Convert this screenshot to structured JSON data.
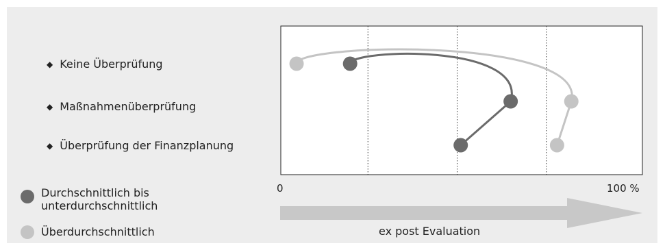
{
  "chart_data": {
    "type": "line",
    "categories": [
      "Keine Überprüfung",
      "Maßnahmenüberprüfung",
      "Überprüfung der Finanzplanung"
    ],
    "xlim": [
      0,
      100
    ],
    "tick_labels": [
      "0",
      "100 %"
    ],
    "xlabel": "ex post Evaluation",
    "reference_lines": [
      25,
      50,
      75
    ],
    "series": [
      {
        "name": "Durchschnittlich bis unterdurchschnittlich",
        "color": "#6b6b6b",
        "values": [
          20,
          65,
          51
        ]
      },
      {
        "name": "Überdurchschnittlich",
        "color": "#c4c4c4",
        "values": [
          5,
          82,
          78
        ]
      }
    ],
    "grid": false,
    "legend_position": "bottom-left"
  },
  "icons": {
    "bullet": "◆"
  }
}
